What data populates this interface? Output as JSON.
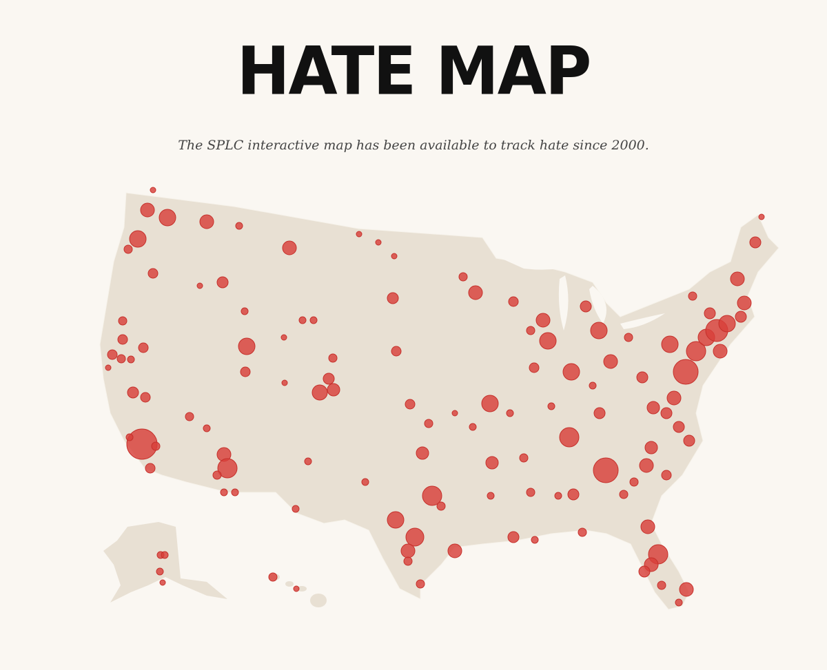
{
  "header": {
    "title": "HATE MAP",
    "subtitle": "The SPLC interactive map has been available to track hate since 2000."
  }
}
